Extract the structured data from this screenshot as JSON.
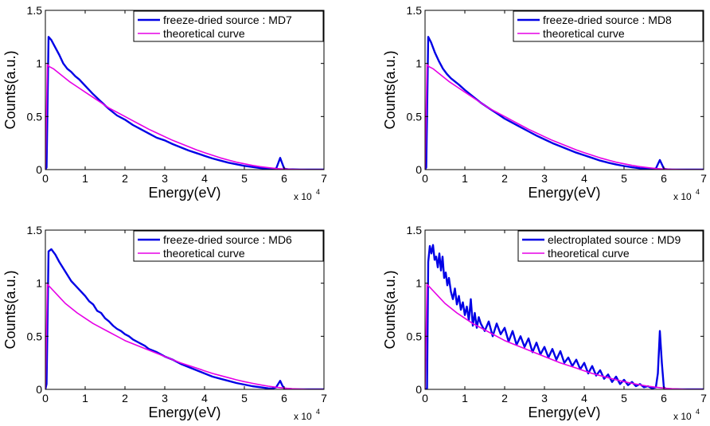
{
  "chart_data": [
    {
      "type": "line",
      "xlabel": "Energy(eV)",
      "ylabel": "Counts(a.u.)",
      "x_multiplier": "x 10",
      "x_multiplier_exp": "4",
      "xlim": [
        0,
        70000
      ],
      "ylim": [
        0,
        1.5
      ],
      "xticks": [
        "0",
        "1",
        "2",
        "3",
        "4",
        "5",
        "6",
        "7"
      ],
      "yticks": [
        "0",
        "0.5",
        "1",
        "1.5"
      ],
      "legend_position": "top-right",
      "grid": false,
      "series": [
        {
          "name": "freeze-dried source : MD7",
          "color": "#0000e6",
          "x": [
            0,
            300,
            800,
            1500,
            2500,
            3500,
            4500,
            5500,
            6500,
            7500,
            8500,
            10000,
            12000,
            14000,
            16000,
            18000,
            20000,
            22000,
            24000,
            26000,
            28000,
            30000,
            32000,
            34000,
            36000,
            38000,
            40000,
            42000,
            44000,
            46000,
            48000,
            50000,
            52000,
            54000,
            56000,
            57000,
            58000,
            58500,
            59000,
            59500,
            60000,
            60500,
            61000,
            62000,
            64000,
            66000,
            70000
          ],
          "y": [
            0,
            0.02,
            1.25,
            1.22,
            1.15,
            1.08,
            1.0,
            0.95,
            0.92,
            0.88,
            0.85,
            0.79,
            0.71,
            0.64,
            0.57,
            0.51,
            0.47,
            0.42,
            0.38,
            0.34,
            0.3,
            0.275,
            0.24,
            0.21,
            0.18,
            0.155,
            0.13,
            0.105,
            0.085,
            0.065,
            0.05,
            0.035,
            0.025,
            0.015,
            0.008,
            0.006,
            0.01,
            0.06,
            0.11,
            0.06,
            0.01,
            0.005,
            0.003,
            0.002,
            0.001,
            0.0,
            0.0
          ]
        },
        {
          "name": "theoretical curve",
          "color": "#e600e6",
          "x": [
            0,
            500,
            1000,
            2000,
            3000,
            4000,
            5000,
            6000,
            8000,
            10000,
            12000,
            14000,
            16000,
            18000,
            20000,
            22000,
            24000,
            26000,
            28000,
            30000,
            32000,
            34000,
            36000,
            38000,
            40000,
            42000,
            44000,
            46000,
            48000,
            50000,
            52000,
            54000,
            56000,
            58000,
            60000,
            62000,
            64000,
            66000,
            68000,
            70000
          ],
          "y": [
            0,
            0.99,
            0.97,
            0.95,
            0.92,
            0.89,
            0.86,
            0.83,
            0.78,
            0.73,
            0.68,
            0.63,
            0.58,
            0.54,
            0.5,
            0.46,
            0.42,
            0.38,
            0.345,
            0.31,
            0.275,
            0.245,
            0.215,
            0.185,
            0.16,
            0.135,
            0.11,
            0.09,
            0.07,
            0.055,
            0.04,
            0.028,
            0.018,
            0.01,
            0.005,
            0.002,
            0.001,
            0.0,
            0.0,
            0.0
          ]
        }
      ]
    },
    {
      "type": "line",
      "xlabel": "Energy(eV)",
      "ylabel": "Counts(a.u.)",
      "x_multiplier": "x 10",
      "x_multiplier_exp": "4",
      "xlim": [
        0,
        70000
      ],
      "ylim": [
        0,
        1.5
      ],
      "xticks": [
        "0",
        "1",
        "2",
        "3",
        "4",
        "5",
        "6",
        "7"
      ],
      "yticks": [
        "0",
        "0.5",
        "1",
        "1.5"
      ],
      "legend_position": "top-right",
      "grid": false,
      "series": [
        {
          "name": "freeze-dried source : MD8",
          "color": "#0000e6",
          "x": [
            0,
            300,
            800,
            1500,
            2500,
            3500,
            4500,
            5500,
            6500,
            7500,
            8500,
            10000,
            12000,
            14000,
            16000,
            18000,
            20000,
            22000,
            24000,
            26000,
            28000,
            30000,
            32000,
            34000,
            36000,
            38000,
            40000,
            42000,
            44000,
            46000,
            48000,
            50000,
            52000,
            54000,
            56000,
            57000,
            58000,
            58500,
            59000,
            59500,
            60000,
            60500,
            61000,
            62000,
            64000,
            66000,
            70000
          ],
          "y": [
            0,
            0.02,
            1.25,
            1.2,
            1.1,
            1.02,
            0.95,
            0.9,
            0.86,
            0.83,
            0.8,
            0.75,
            0.69,
            0.63,
            0.58,
            0.53,
            0.48,
            0.44,
            0.4,
            0.36,
            0.32,
            0.285,
            0.25,
            0.22,
            0.19,
            0.16,
            0.135,
            0.11,
            0.085,
            0.065,
            0.048,
            0.034,
            0.022,
            0.013,
            0.007,
            0.005,
            0.01,
            0.05,
            0.09,
            0.05,
            0.01,
            0.004,
            0.002,
            0.001,
            0.0,
            0.0,
            0.0
          ]
        },
        {
          "name": "theoretical curve",
          "color": "#e600e6",
          "x": [
            0,
            500,
            1000,
            2000,
            3000,
            4000,
            5000,
            6000,
            8000,
            10000,
            12000,
            14000,
            16000,
            18000,
            20000,
            22000,
            24000,
            26000,
            28000,
            30000,
            32000,
            34000,
            36000,
            38000,
            40000,
            42000,
            44000,
            46000,
            48000,
            50000,
            52000,
            54000,
            56000,
            58000,
            60000,
            62000,
            64000,
            66000,
            68000,
            70000
          ],
          "y": [
            0,
            0.99,
            0.97,
            0.95,
            0.92,
            0.89,
            0.86,
            0.83,
            0.78,
            0.73,
            0.68,
            0.63,
            0.58,
            0.54,
            0.5,
            0.46,
            0.42,
            0.38,
            0.345,
            0.31,
            0.275,
            0.245,
            0.215,
            0.185,
            0.16,
            0.135,
            0.11,
            0.09,
            0.07,
            0.055,
            0.04,
            0.028,
            0.018,
            0.01,
            0.005,
            0.002,
            0.001,
            0.0,
            0.0,
            0.0
          ]
        }
      ]
    },
    {
      "type": "line",
      "xlabel": "Energy(eV)",
      "ylabel": "Counts(a.u.)",
      "x_multiplier": "x 10",
      "x_multiplier_exp": "4",
      "xlim": [
        0,
        70000
      ],
      "ylim": [
        0,
        1.5
      ],
      "xticks": [
        "0",
        "1",
        "2",
        "3",
        "4",
        "5",
        "6",
        "7"
      ],
      "yticks": [
        "0",
        "0.5",
        "1",
        "1.5"
      ],
      "legend_position": "top-right",
      "grid": false,
      "series": [
        {
          "name": "freeze-dried source : MD6",
          "color": "#0000e6",
          "x": [
            0,
            300,
            800,
            1500,
            2500,
            3500,
            4500,
            5500,
            6500,
            7500,
            8500,
            10000,
            11000,
            12000,
            13000,
            14000,
            15000,
            16000,
            17000,
            18000,
            19000,
            20000,
            21000,
            22000,
            23000,
            24000,
            25000,
            26000,
            28000,
            30000,
            32000,
            34000,
            36000,
            38000,
            40000,
            42000,
            44000,
            46000,
            48000,
            50000,
            52000,
            54000,
            56000,
            57000,
            58000,
            58500,
            59000,
            59500,
            60000,
            61000,
            63000,
            66000,
            70000
          ],
          "y": [
            0,
            0.05,
            1.3,
            1.32,
            1.27,
            1.2,
            1.14,
            1.08,
            1.02,
            0.98,
            0.94,
            0.88,
            0.83,
            0.8,
            0.74,
            0.72,
            0.67,
            0.64,
            0.6,
            0.57,
            0.55,
            0.52,
            0.5,
            0.47,
            0.45,
            0.43,
            0.41,
            0.38,
            0.35,
            0.31,
            0.28,
            0.24,
            0.21,
            0.18,
            0.15,
            0.12,
            0.1,
            0.08,
            0.06,
            0.045,
            0.03,
            0.02,
            0.01,
            0.008,
            0.02,
            0.05,
            0.08,
            0.04,
            0.01,
            0.004,
            0.001,
            0.0,
            0.0
          ]
        },
        {
          "name": "theoretical curve",
          "color": "#e600e6",
          "x": [
            0,
            500,
            1000,
            2000,
            3000,
            4000,
            5000,
            6000,
            8000,
            10000,
            12000,
            14000,
            16000,
            18000,
            20000,
            22000,
            24000,
            26000,
            28000,
            30000,
            32000,
            34000,
            36000,
            38000,
            40000,
            42000,
            44000,
            46000,
            48000,
            50000,
            52000,
            54000,
            56000,
            58000,
            60000,
            62000,
            64000,
            66000,
            68000,
            70000
          ],
          "y": [
            0,
            0.99,
            0.97,
            0.93,
            0.89,
            0.85,
            0.81,
            0.78,
            0.72,
            0.67,
            0.62,
            0.58,
            0.54,
            0.5,
            0.46,
            0.43,
            0.4,
            0.37,
            0.34,
            0.31,
            0.28,
            0.25,
            0.225,
            0.2,
            0.175,
            0.15,
            0.13,
            0.11,
            0.09,
            0.073,
            0.057,
            0.043,
            0.03,
            0.02,
            0.012,
            0.006,
            0.002,
            0.0,
            0.0,
            0.0
          ]
        }
      ]
    },
    {
      "type": "line",
      "xlabel": "Energy(eV)",
      "ylabel": "Counts(a.u.)",
      "x_multiplier": "x 10",
      "x_multiplier_exp": "4",
      "xlim": [
        0,
        70000
      ],
      "ylim": [
        0,
        1.5
      ],
      "xticks": [
        "0",
        "1",
        "2",
        "3",
        "4",
        "5",
        "6",
        "7"
      ],
      "yticks": [
        "0",
        "0.5",
        "1",
        "1.5"
      ],
      "legend_position": "top-right",
      "grid": false,
      "series": [
        {
          "name": "electroplated source : MD9",
          "color": "#0000e6",
          "x": [
            0,
            500,
            800,
            1200,
            1600,
            2000,
            2400,
            2800,
            3200,
            3600,
            4000,
            4400,
            4800,
            5200,
            5600,
            6000,
            6500,
            7000,
            7500,
            8000,
            8500,
            9000,
            9500,
            10000,
            10500,
            11000,
            11500,
            12000,
            12500,
            13000,
            13500,
            14000,
            15000,
            16000,
            17000,
            18000,
            19000,
            20000,
            21000,
            22000,
            23000,
            24000,
            25000,
            26000,
            27000,
            28000,
            29000,
            30000,
            31000,
            32000,
            33000,
            34000,
            35000,
            36000,
            37000,
            38000,
            39000,
            40000,
            41000,
            42000,
            43000,
            44000,
            45000,
            46000,
            47000,
            48000,
            49000,
            50000,
            51000,
            52000,
            53000,
            54000,
            55000,
            56000,
            57000,
            58000,
            58500,
            59000,
            59500,
            60000,
            60500,
            61000,
            62000,
            64000,
            66000,
            70000
          ],
          "y": [
            0,
            0.01,
            1.2,
            1.35,
            1.28,
            1.36,
            1.22,
            1.25,
            1.15,
            1.28,
            1.12,
            1.25,
            1.05,
            1.1,
            0.98,
            1.05,
            0.92,
            0.85,
            0.95,
            0.8,
            0.88,
            0.75,
            0.82,
            0.7,
            0.78,
            0.65,
            0.85,
            0.6,
            0.72,
            0.58,
            0.68,
            0.62,
            0.55,
            0.64,
            0.5,
            0.62,
            0.52,
            0.58,
            0.45,
            0.55,
            0.42,
            0.5,
            0.4,
            0.48,
            0.35,
            0.44,
            0.33,
            0.4,
            0.3,
            0.38,
            0.28,
            0.36,
            0.25,
            0.3,
            0.22,
            0.28,
            0.19,
            0.25,
            0.15,
            0.22,
            0.13,
            0.18,
            0.1,
            0.14,
            0.07,
            0.12,
            0.05,
            0.09,
            0.04,
            0.07,
            0.03,
            0.05,
            0.02,
            0.03,
            0.01,
            0.02,
            0.15,
            0.55,
            0.25,
            0.02,
            0.005,
            0.003,
            0.002,
            0.001,
            0.0,
            0.0
          ]
        },
        {
          "name": "theoretical curve",
          "color": "#e600e6",
          "x": [
            0,
            500,
            1000,
            2000,
            3000,
            4000,
            5000,
            6000,
            8000,
            10000,
            12000,
            14000,
            16000,
            18000,
            20000,
            22000,
            24000,
            26000,
            28000,
            30000,
            32000,
            34000,
            36000,
            38000,
            40000,
            42000,
            44000,
            46000,
            48000,
            50000,
            52000,
            54000,
            56000,
            58000,
            60000,
            62000,
            64000,
            66000,
            68000,
            70000
          ],
          "y": [
            0,
            0.99,
            0.97,
            0.93,
            0.89,
            0.85,
            0.81,
            0.78,
            0.72,
            0.67,
            0.62,
            0.58,
            0.54,
            0.5,
            0.46,
            0.43,
            0.4,
            0.37,
            0.34,
            0.31,
            0.28,
            0.25,
            0.225,
            0.2,
            0.175,
            0.15,
            0.13,
            0.11,
            0.09,
            0.073,
            0.057,
            0.043,
            0.03,
            0.02,
            0.012,
            0.006,
            0.002,
            0.0,
            0.0,
            0.0
          ]
        }
      ]
    }
  ]
}
